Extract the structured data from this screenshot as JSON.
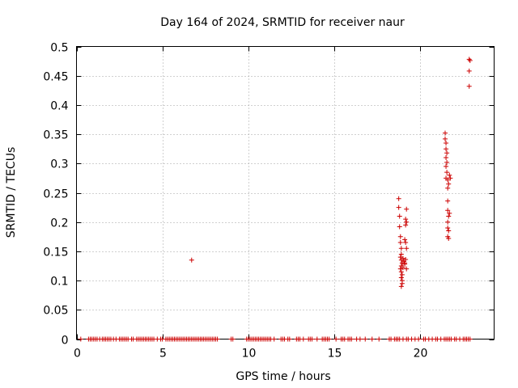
{
  "chart_data": {
    "type": "scatter",
    "title": "Day 164 of 2024, SRMTID for receiver naur",
    "xlabel": "GPS time / hours",
    "ylabel": "SRMTID / TECUs",
    "xlim": [
      0,
      24.3
    ],
    "ylim": [
      0,
      0.5
    ],
    "xticks": [
      0,
      5,
      10,
      15,
      20
    ],
    "xtick_labels": [
      "0",
      "5",
      "10",
      "15",
      "20"
    ],
    "yticks": [
      0,
      0.05,
      0.1,
      0.15,
      0.2,
      0.25,
      0.3,
      0.35,
      0.4,
      0.45,
      0.5
    ],
    "ytick_labels": [
      "0",
      "0.05",
      "0.1",
      "0.15",
      "0.2",
      "0.25",
      "0.3",
      "0.35",
      "0.4",
      "0.45",
      "0.5"
    ],
    "grid": true,
    "marker": "+",
    "marker_color": "#cc0000",
    "series": [
      {
        "name": "SRMTID",
        "points": [
          [
            0.25,
            0
          ],
          [
            0.7,
            0
          ],
          [
            0.8,
            0
          ],
          [
            0.9,
            0
          ],
          [
            1.0,
            0
          ],
          [
            1.1,
            0
          ],
          [
            1.2,
            0
          ],
          [
            1.35,
            0
          ],
          [
            1.5,
            0
          ],
          [
            1.6,
            0
          ],
          [
            1.7,
            0
          ],
          [
            1.8,
            0
          ],
          [
            1.9,
            0
          ],
          [
            2.0,
            0
          ],
          [
            2.15,
            0
          ],
          [
            2.3,
            0
          ],
          [
            2.5,
            0
          ],
          [
            2.6,
            0
          ],
          [
            2.7,
            0
          ],
          [
            2.8,
            0
          ],
          [
            2.9,
            0
          ],
          [
            3.0,
            0
          ],
          [
            3.2,
            0
          ],
          [
            3.3,
            0
          ],
          [
            3.5,
            0
          ],
          [
            3.6,
            0
          ],
          [
            3.7,
            0
          ],
          [
            3.8,
            0
          ],
          [
            3.9,
            0
          ],
          [
            4.0,
            0
          ],
          [
            4.1,
            0
          ],
          [
            4.2,
            0
          ],
          [
            4.3,
            0
          ],
          [
            4.4,
            0
          ],
          [
            4.5,
            0
          ],
          [
            4.7,
            0
          ],
          [
            4.9,
            0
          ],
          [
            5.0,
            0
          ],
          [
            5.2,
            0
          ],
          [
            5.3,
            0
          ],
          [
            5.4,
            0
          ],
          [
            5.5,
            0
          ],
          [
            5.6,
            0
          ],
          [
            5.7,
            0
          ],
          [
            5.8,
            0
          ],
          [
            5.9,
            0
          ],
          [
            6.0,
            0
          ],
          [
            6.1,
            0
          ],
          [
            6.2,
            0
          ],
          [
            6.3,
            0
          ],
          [
            6.4,
            0
          ],
          [
            6.5,
            0
          ],
          [
            6.6,
            0
          ],
          [
            6.7,
            0
          ],
          [
            6.8,
            0
          ],
          [
            6.9,
            0
          ],
          [
            7.0,
            0
          ],
          [
            7.1,
            0
          ],
          [
            7.2,
            0
          ],
          [
            7.3,
            0
          ],
          [
            7.4,
            0
          ],
          [
            7.5,
            0
          ],
          [
            7.6,
            0
          ],
          [
            7.7,
            0
          ],
          [
            7.8,
            0
          ],
          [
            7.9,
            0
          ],
          [
            8.0,
            0
          ],
          [
            8.1,
            0
          ],
          [
            8.2,
            0
          ],
          [
            9.0,
            0
          ],
          [
            9.1,
            0
          ],
          [
            9.9,
            0
          ],
          [
            10.0,
            0
          ],
          [
            10.1,
            0
          ],
          [
            10.2,
            0
          ],
          [
            10.3,
            0
          ],
          [
            10.4,
            0
          ],
          [
            10.5,
            0
          ],
          [
            10.6,
            0
          ],
          [
            10.7,
            0
          ],
          [
            10.8,
            0
          ],
          [
            10.9,
            0
          ],
          [
            11.0,
            0
          ],
          [
            11.1,
            0
          ],
          [
            11.2,
            0
          ],
          [
            11.3,
            0
          ],
          [
            11.5,
            0
          ],
          [
            11.9,
            0
          ],
          [
            12.0,
            0
          ],
          [
            12.1,
            0
          ],
          [
            12.3,
            0
          ],
          [
            12.4,
            0
          ],
          [
            12.8,
            0
          ],
          [
            12.9,
            0
          ],
          [
            13.0,
            0
          ],
          [
            13.2,
            0
          ],
          [
            13.5,
            0
          ],
          [
            13.6,
            0
          ],
          [
            13.7,
            0
          ],
          [
            14.0,
            0
          ],
          [
            14.3,
            0
          ],
          [
            14.4,
            0
          ],
          [
            14.5,
            0
          ],
          [
            14.6,
            0
          ],
          [
            14.7,
            0
          ],
          [
            15.1,
            0
          ],
          [
            15.4,
            0
          ],
          [
            15.5,
            0
          ],
          [
            15.6,
            0
          ],
          [
            15.8,
            0
          ],
          [
            15.9,
            0
          ],
          [
            16.0,
            0
          ],
          [
            16.3,
            0
          ],
          [
            16.5,
            0
          ],
          [
            16.8,
            0
          ],
          [
            17.2,
            0
          ],
          [
            17.6,
            0
          ],
          [
            18.2,
            0
          ],
          [
            18.3,
            0
          ],
          [
            18.5,
            0
          ],
          [
            18.6,
            0
          ],
          [
            18.7,
            0
          ],
          [
            18.8,
            0
          ],
          [
            19.0,
            0
          ],
          [
            19.2,
            0
          ],
          [
            19.3,
            0
          ],
          [
            19.5,
            0
          ],
          [
            19.7,
            0
          ],
          [
            19.9,
            0
          ],
          [
            20.2,
            0
          ],
          [
            20.3,
            0
          ],
          [
            20.5,
            0
          ],
          [
            20.7,
            0
          ],
          [
            20.9,
            0
          ],
          [
            21.0,
            0
          ],
          [
            21.2,
            0
          ],
          [
            21.4,
            0
          ],
          [
            21.5,
            0
          ],
          [
            21.6,
            0
          ],
          [
            21.7,
            0
          ],
          [
            21.8,
            0
          ],
          [
            22.0,
            0
          ],
          [
            22.1,
            0
          ],
          [
            22.3,
            0
          ],
          [
            22.5,
            0
          ],
          [
            22.6,
            0
          ],
          [
            22.7,
            0
          ],
          [
            22.8,
            0
          ],
          [
            22.9,
            0
          ],
          [
            6.7,
            0.135
          ],
          [
            18.75,
            0.24
          ],
          [
            18.75,
            0.225
          ],
          [
            18.8,
            0.21
          ],
          [
            18.8,
            0.192
          ],
          [
            18.85,
            0.175
          ],
          [
            18.85,
            0.165
          ],
          [
            18.9,
            0.155
          ],
          [
            18.9,
            0.145
          ],
          [
            18.85,
            0.14
          ],
          [
            18.9,
            0.135
          ],
          [
            18.95,
            0.13
          ],
          [
            18.9,
            0.125
          ],
          [
            18.85,
            0.12
          ],
          [
            18.9,
            0.115
          ],
          [
            18.95,
            0.11
          ],
          [
            18.9,
            0.105
          ],
          [
            18.95,
            0.1
          ],
          [
            18.95,
            0.095
          ],
          [
            18.9,
            0.09
          ],
          [
            19.0,
            0.138
          ],
          [
            19.05,
            0.133
          ],
          [
            19.1,
            0.128
          ],
          [
            19.0,
            0.122
          ],
          [
            19.15,
            0.136
          ],
          [
            19.1,
            0.13
          ],
          [
            19.2,
            0.12
          ],
          [
            19.15,
            0.165
          ],
          [
            19.2,
            0.155
          ],
          [
            19.15,
            0.205
          ],
          [
            19.2,
            0.2
          ],
          [
            19.15,
            0.195
          ],
          [
            19.2,
            0.222
          ],
          [
            19.1,
            0.17
          ],
          [
            21.45,
            0.352
          ],
          [
            21.45,
            0.342
          ],
          [
            21.5,
            0.335
          ],
          [
            21.5,
            0.325
          ],
          [
            21.55,
            0.318
          ],
          [
            21.5,
            0.31
          ],
          [
            21.55,
            0.302
          ],
          [
            21.5,
            0.295
          ],
          [
            21.55,
            0.285
          ],
          [
            21.5,
            0.275
          ],
          [
            21.6,
            0.272
          ],
          [
            21.65,
            0.265
          ],
          [
            21.6,
            0.258
          ],
          [
            21.7,
            0.28
          ],
          [
            21.75,
            0.275
          ],
          [
            21.6,
            0.236
          ],
          [
            21.6,
            0.22
          ],
          [
            21.65,
            0.21
          ],
          [
            21.6,
            0.2
          ],
          [
            21.6,
            0.19
          ],
          [
            21.65,
            0.185
          ],
          [
            21.6,
            0.175
          ],
          [
            21.65,
            0.172
          ],
          [
            21.7,
            0.215
          ],
          [
            22.85,
            0.478
          ],
          [
            22.9,
            0.476
          ],
          [
            22.85,
            0.458
          ],
          [
            22.85,
            0.432
          ]
        ]
      }
    ]
  }
}
